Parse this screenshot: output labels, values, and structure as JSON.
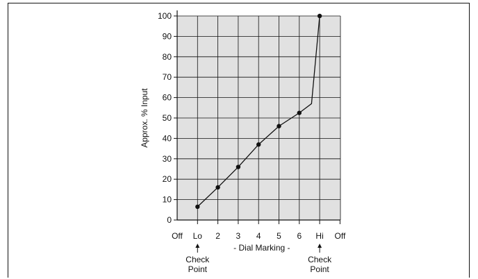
{
  "chart_data": {
    "type": "line",
    "title": "",
    "ylabel": "Approx. % Input",
    "xlabel": "- Dial Marking -",
    "categories": [
      "Off",
      "Lo",
      "2",
      "3",
      "4",
      "5",
      "6",
      "Hi",
      "Off"
    ],
    "ylim": [
      0,
      100
    ],
    "yticks": [
      0,
      10,
      20,
      30,
      40,
      50,
      60,
      70,
      80,
      90,
      100
    ],
    "grid": true,
    "series": [
      {
        "x": [
          1,
          2,
          3,
          4,
          5,
          6,
          6.6,
          7
        ],
        "y": [
          6.5,
          16,
          26,
          37,
          46,
          52.5,
          57,
          100
        ],
        "markers": [
          true,
          true,
          true,
          true,
          true,
          true,
          false,
          true
        ]
      }
    ],
    "annotations": [
      {
        "category": "Lo",
        "line1": "Check",
        "line2": "Point"
      },
      {
        "category": "Hi",
        "line1": "Check",
        "line2": "Point"
      }
    ],
    "colors": {
      "plot_background": "#e1e1e1",
      "line": "#111111",
      "grid": "#111111"
    }
  }
}
